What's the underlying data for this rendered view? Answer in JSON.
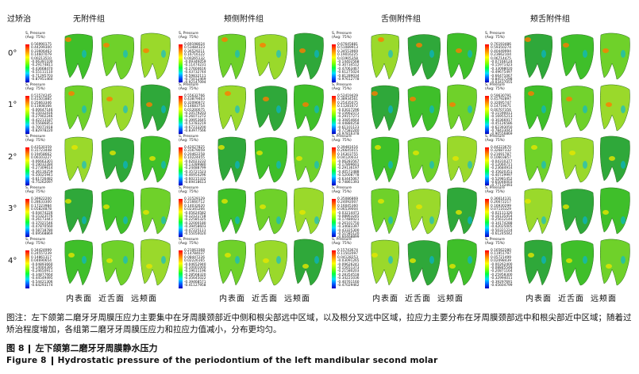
{
  "header": {
    "corner_label": "过矫治",
    "groups": [
      "无附件组",
      "颊侧附件组",
      "舌侧附件组",
      "颊舌附件组"
    ]
  },
  "rows": [
    "0°",
    "1°",
    "2°",
    "3°",
    "4°"
  ],
  "legend": {
    "title": "S, Pressure",
    "avg": "(Avg: 75%)"
  },
  "legend_values": [
    [
      [
        "0.56990175",
        "0.44299300",
        "0.33606463",
        "0.14607079",
        "0.00213510",
        "-0.06391100",
        "-0.29174811",
        "-0.43668470",
        "-0.55111110",
        "-0.71295703",
        "-0.87951460"
      ],
      [
        "0.69198024",
        "0.53484323",
        "0.36529211",
        "0.16716122",
        "0.00265132",
        "-0.09346059",
        "-0.11474231",
        "-0.27604616",
        "-0.43732744",
        "-0.59832111",
        "-0.75012469",
        "-0.92147094"
      ],
      [
        "0.67645881",
        "0.51089913",
        "0.34553969",
        "0.19016225",
        "0.01905358",
        "-0.14402568",
        "-0.30734512",
        "-0.47063467",
        "-0.61275024",
        "-0.81289034",
        "-0.97612778"
      ],
      [
        "0.76193486",
        "0.59350274",
        "0.40449994",
        "0.23662104",
        "0.06714475",
        "-0.07166124",
        "-0.15971423",
        "-0.33098020",
        "-0.49675497",
        "-0.66471067",
        "-0.84517298",
        "-0.03437055"
      ]
    ],
    [
      [
        "0.51574245",
        "0.41501885",
        "0.25663346",
        "0.11608166",
        "-0.00647146",
        "-0.15032416",
        "-0.27902246",
        "-0.42213187",
        "-0.55686853",
        "-0.70071918",
        "-0.82978220"
      ],
      [
        "0.55632766",
        "0.43879463",
        "0.32096972",
        "0.14683754",
        "0.01200075",
        "-0.10579203",
        "-0.26071272",
        "-0.39953645",
        "-0.53783219",
        "-0.67233200",
        "-0.83977566"
      ],
      [
        "0.52419429",
        "0.38934561",
        "0.25435075",
        "0.11281672",
        "-0.03027296",
        "-0.15662571",
        "-0.29157271",
        "-0.30854664",
        "-0.44880258",
        "-0.61101123",
        "-0.77582240",
        "-0.97816378"
      ],
      [
        "0.59630791",
        "0.45792897",
        "0.32095747",
        "0.14719471",
        "0.00707356",
        "-0.11590011",
        "-0.16955213",
        "-0.30366917",
        "-0.45126586",
        "-0.62393050",
        "-0.78433043",
        "-0.90556869"
      ]
    ],
    [
      [
        "0.43530359",
        "0.31723448",
        "0.19458662",
        "0.06103227",
        "-0.06663301",
        "-0.19032284",
        "-0.27309614",
        "-0.36116259",
        "-0.50025941",
        "-0.61726482",
        "-0.75262097"
      ],
      [
        "0.42027825",
        "0.31679059",
        "0.20462258",
        "0.10224455",
        "-0.02023232",
        "-0.13289980",
        "-0.24488799",
        "-0.35721523",
        "-0.46954296",
        "-0.60215332",
        "-0.69418613"
      ],
      [
        "0.39481616",
        "0.26645015",
        "0.16303755",
        "0.04120033",
        "-0.06283567",
        "-0.17899601",
        "-0.29136197",
        "-0.40572488",
        "-0.52008778",
        "-0.63445067",
        "-0.74861393"
      ],
      [
        "0.44223670",
        "0.32687332",
        "0.21691787",
        "0.10603857",
        "-0.04310377",
        "-0.12060711",
        "-0.23684914",
        "-0.35620351",
        "-0.40729997",
        "-0.52981452",
        "-0.65046003",
        "-0.77132493"
      ]
    ],
    [
      [
        "0.39922200",
        "0.28633300",
        "0.17223984",
        "0.05824878",
        "-0.04474226",
        "-0.15323576",
        "-0.26173441",
        "-0.37021546",
        "-0.47870560",
        "-0.58718780",
        "-0.69568869"
      ],
      [
        "0.31529129",
        "0.21660712",
        "0.14032620",
        "0.02345266",
        "-0.05624582",
        "-0.12121718",
        "-0.22585325",
        "-0.32000180",
        "-0.39458603",
        "-0.47225111",
        "-0.55050020"
      ],
      [
        "0.35086869",
        "0.24092007",
        "0.16045360",
        "0.06539004",
        "-0.03214471",
        "-0.08863245",
        "-0.17480021",
        "-0.26101750",
        "-0.34683397",
        "-0.43325300",
        "-0.51585120",
        "-0.60468899"
      ],
      [
        "0.36614131",
        "0.26672217",
        "0.16930299",
        "0.07116329",
        "-0.02111326",
        "-0.16135454",
        "-0.25612144",
        "-0.34174288",
        "-0.42025005",
        "-0.50321224",
        "-0.61245042"
      ]
    ],
    [
      [
        "0.34424999",
        "0.24557239",
        "0.14861317",
        "0.04690654",
        "-0.04893660",
        "-0.14004395",
        "-0.24650911",
        "-0.34877664",
        "-0.44549495",
        "-0.54421306",
        "-0.64293174"
      ],
      [
        "0.21063368",
        "0.14784037",
        "0.08447226",
        "0.02226165",
        "-0.04652940",
        "-0.10001000",
        "-0.19611196",
        "-0.28568320",
        "-0.35645022",
        "-0.39468571",
        "-0.41127958"
      ],
      [
        "0.15743674",
        "0.11502097",
        "0.04128253",
        "-0.03091265",
        "-0.09626241",
        "-0.15651373",
        "-0.21580203",
        "-0.28354518",
        "-0.34221036",
        "-0.40761160",
        "-0.47029462"
      ],
      [
        "0.16562280",
        "0.11951797",
        "0.05721499",
        "0.02098439",
        "-0.00262400",
        "-0.08845548",
        "-0.20871164",
        "-0.25958300",
        "-0.32994011",
        "-0.39297691",
        "-0.45604799"
      ]
    ]
  ],
  "views": [
    "内表面",
    "近舌面",
    "远颊面"
  ],
  "caption": {
    "note": "图注：左下颌第二磨牙牙周膜压应力主要集中在牙周膜颈部近中侧和根尖部远中区域，以及根分叉远中区域，拉应力主要分布在牙周膜颈部远中和根尖部近中区域；随着过矫治程度增加，各组第二磨牙牙周膜压应力和拉应力值减小，分布更均匀。",
    "fig_cn_label": "图 8",
    "fig_cn_text": "左下颌第二磨牙牙周膜静水压力",
    "fig_en_label": "Figure 8",
    "fig_en_text": "Hydrostatic pressure of the periodontium of the left mandibular second molar"
  }
}
